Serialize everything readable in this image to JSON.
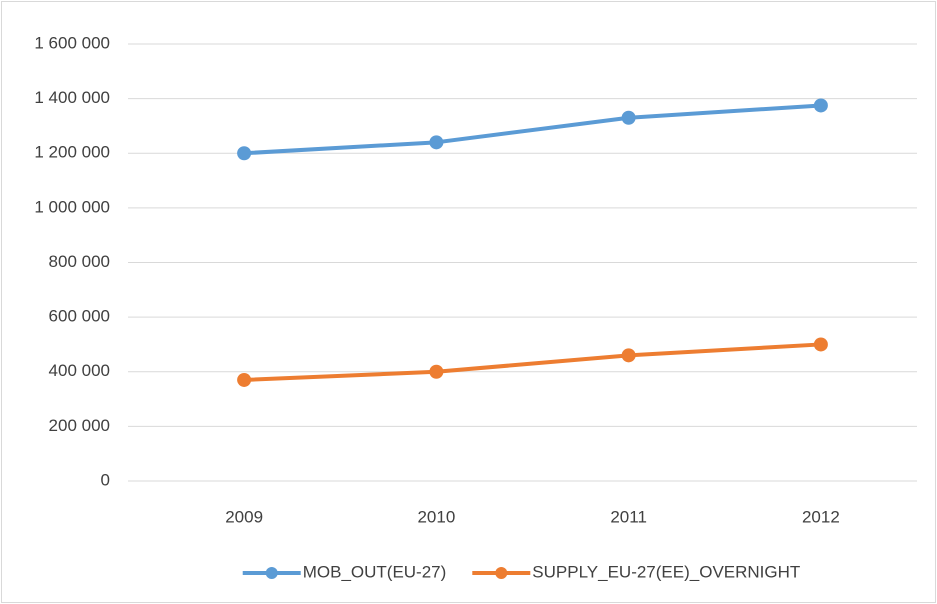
{
  "chart_data": {
    "type": "line",
    "categories": [
      "2009",
      "2010",
      "2011",
      "2012"
    ],
    "series": [
      {
        "name": "MOB_OUT(EU-27)",
        "color": "#5b9bd5",
        "values": [
          1200000,
          1240000,
          1330000,
          1375000
        ]
      },
      {
        "name": "SUPPLY_EU-27(EE)_OVERNIGHT",
        "color": "#ed7d31",
        "values": [
          370000,
          400000,
          460000,
          500000
        ]
      }
    ],
    "ylim": [
      0,
      1600000
    ],
    "yticks": [
      0,
      {
        "value": 200000,
        "label": "200 000"
      },
      {
        "value": 400000,
        "label": "400 000"
      },
      {
        "value": 600000,
        "label": "600 000"
      },
      {
        "value": 800000,
        "label": "800 000"
      },
      {
        "value": 1000000,
        "label": "1 000 000"
      },
      {
        "value": 1200000,
        "label": "1 200 000"
      },
      {
        "value": 1400000,
        "label": "1 400 000"
      },
      {
        "value": 1600000,
        "label": "1 600 000"
      }
    ],
    "grid": true,
    "legend": "bottom"
  }
}
